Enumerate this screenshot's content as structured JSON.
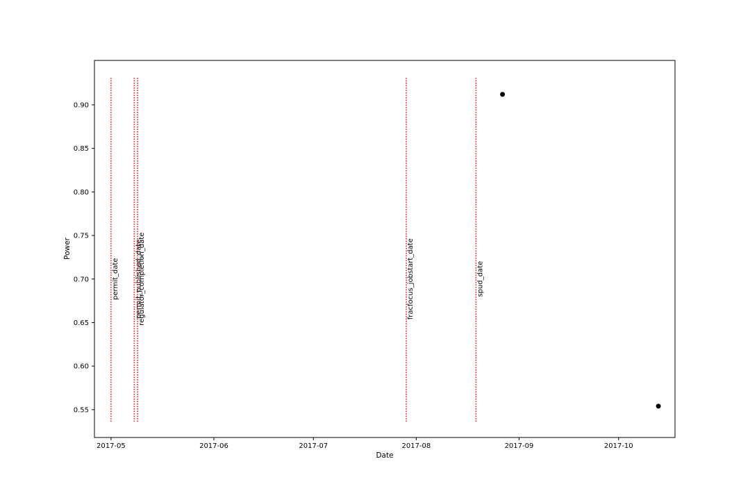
{
  "chart_data": {
    "type": "scatter",
    "title": "",
    "xlabel": "Date",
    "ylabel": "Power",
    "x_ticks": [
      "2017-05",
      "2017-06",
      "2017-07",
      "2017-08",
      "2017-09",
      "2017-10"
    ],
    "y_ticks": [
      "0.55",
      "0.60",
      "0.65",
      "0.70",
      "0.75",
      "0.80",
      "0.85",
      "0.90"
    ],
    "xlim": [
      "2017-04-26",
      "2017-10-18"
    ],
    "ylim": [
      0.518,
      0.951
    ],
    "grid": false,
    "legend": "none",
    "points": [
      {
        "x": "2017-08-27",
        "y": 0.912
      },
      {
        "x": "2017-10-13",
        "y": 0.554
      }
    ],
    "event_lines": [
      {
        "label": "permit_date",
        "x": "2017-05-01",
        "label_y": 0.7
      },
      {
        "label": "permit_published_date",
        "x": "2017-05-08",
        "label_y": 0.7
      },
      {
        "label": "regulator_completion_date",
        "x": "2017-05-09",
        "label_y": 0.7
      },
      {
        "label": "fracfocus_jobstart_date",
        "x": "2017-07-29",
        "label_y": 0.7
      },
      {
        "label": "spud_date",
        "x": "2017-08-19",
        "label_y": 0.7
      }
    ],
    "event_line_range": [
      0.536,
      0.931
    ],
    "colors": {
      "points": "#000000",
      "event_lines": "#ff0000"
    }
  }
}
